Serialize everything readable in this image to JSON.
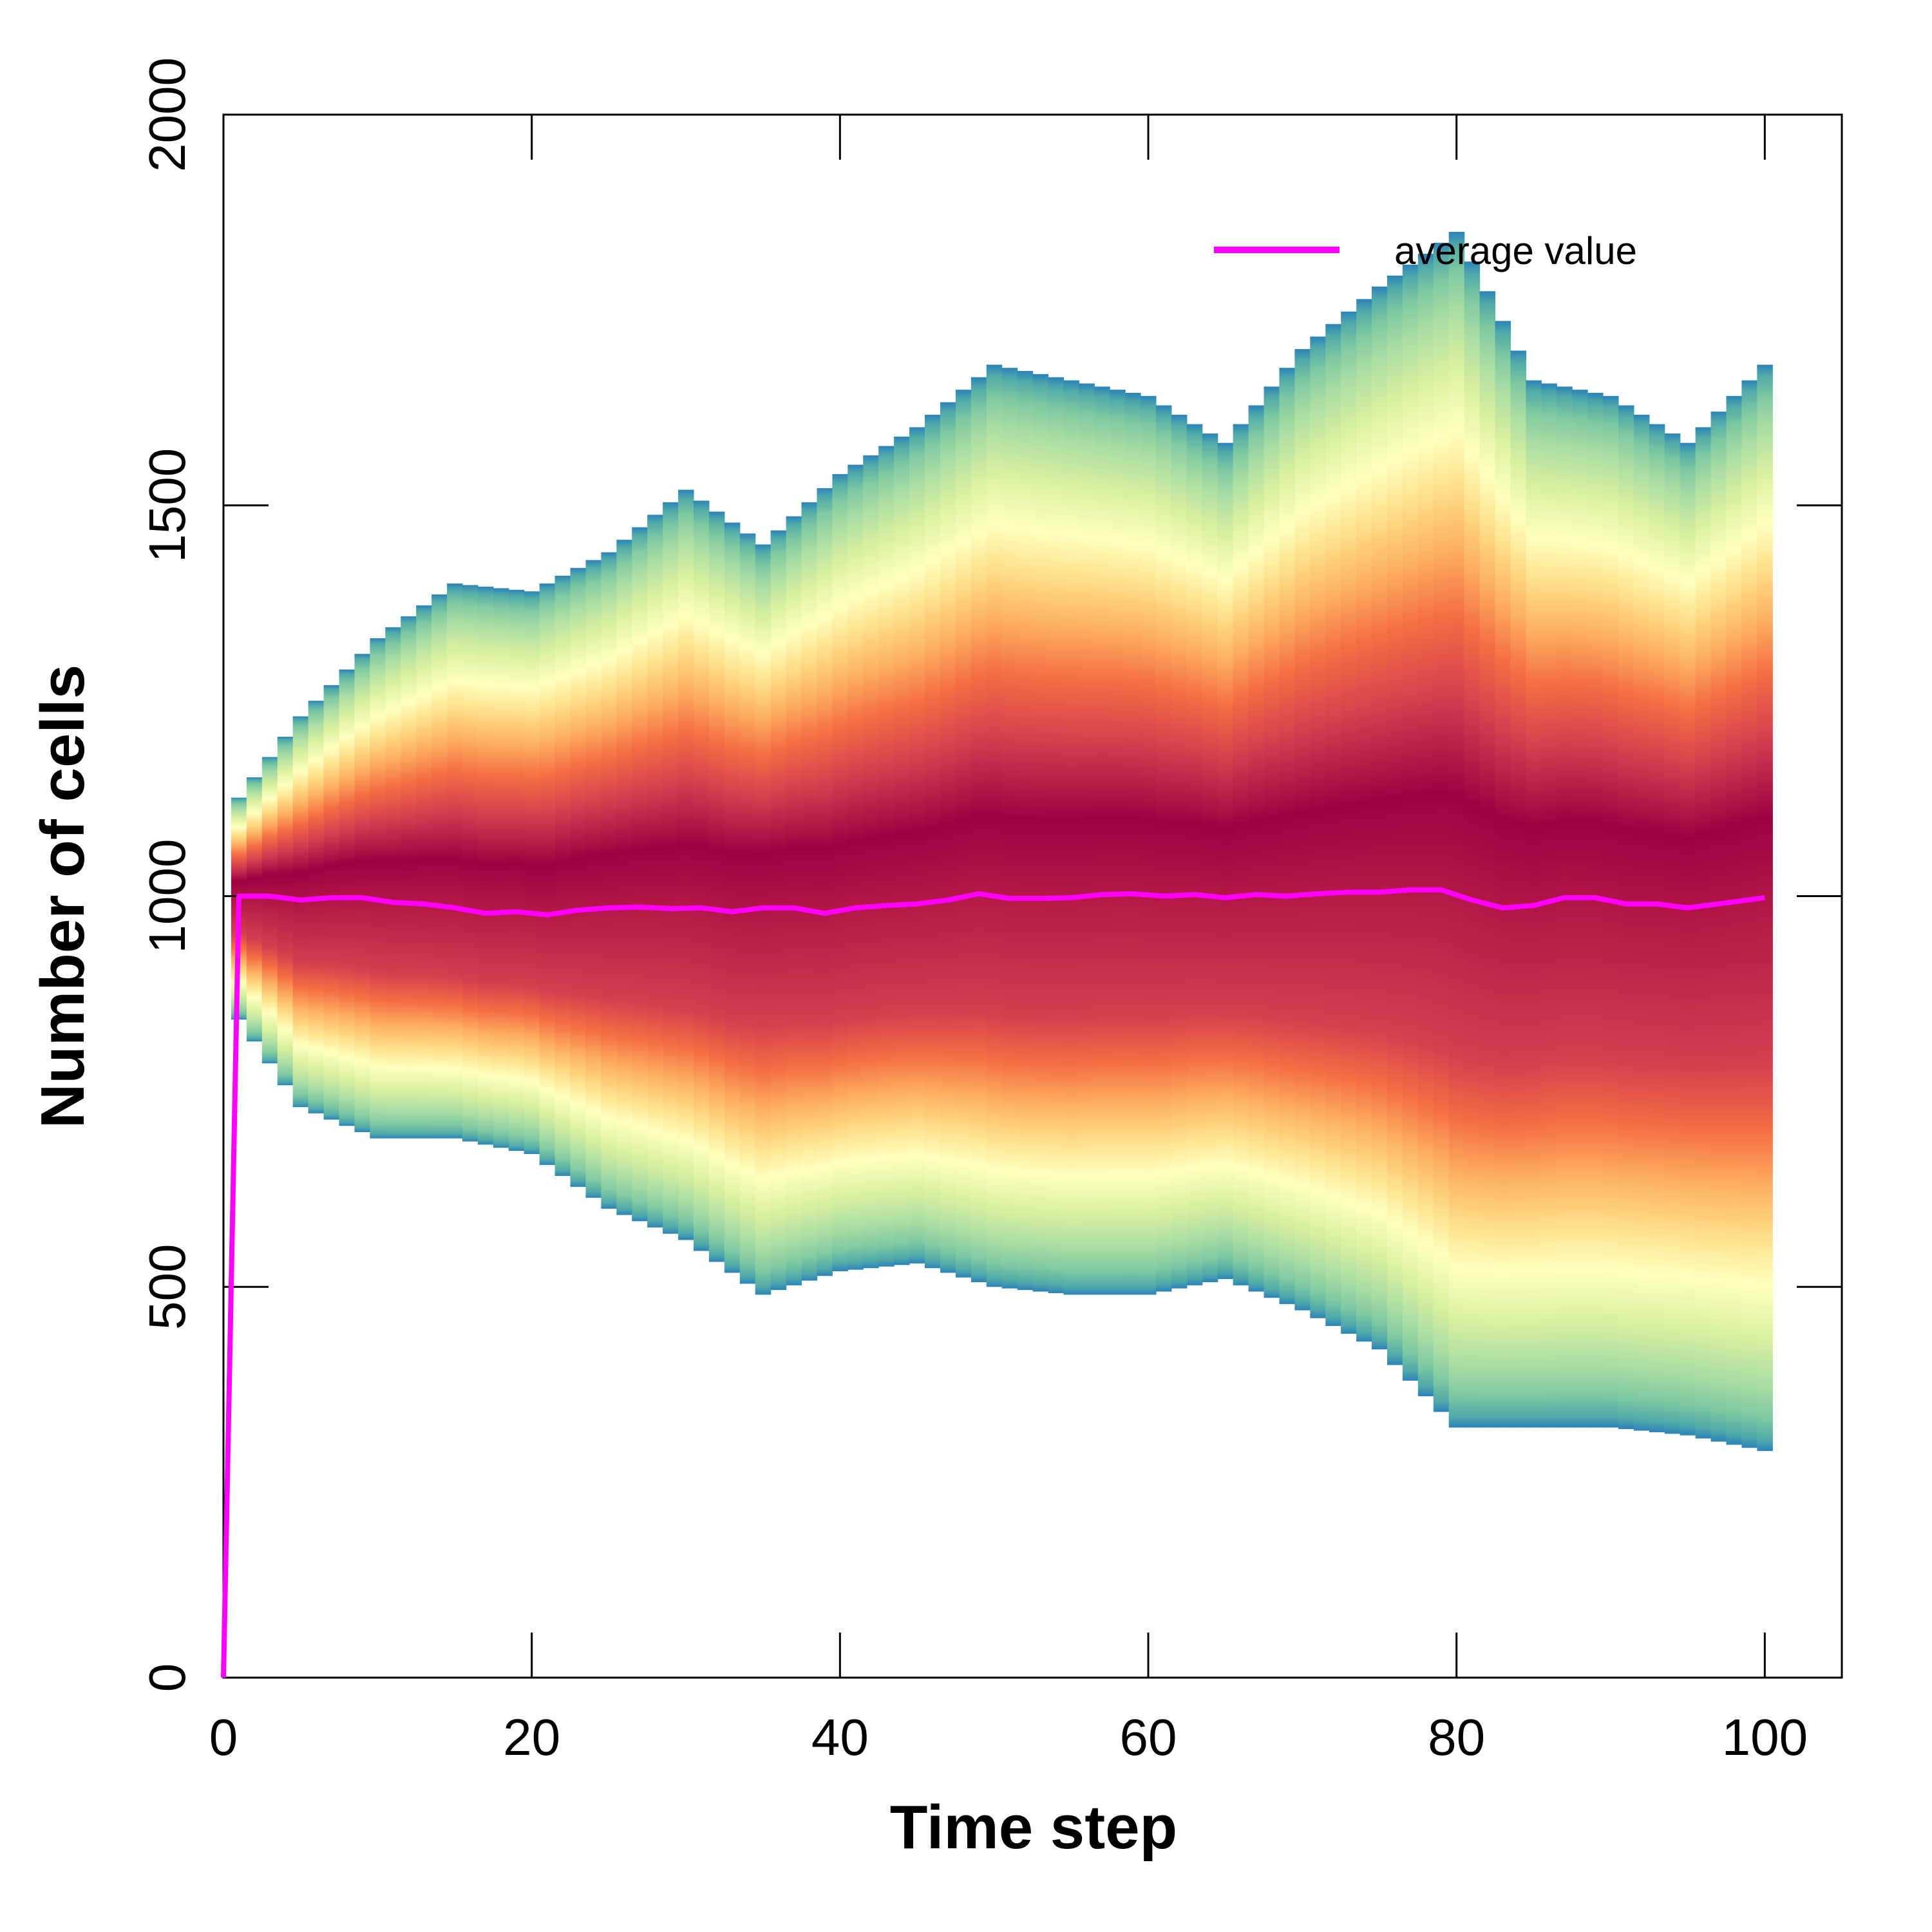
{
  "chart_data": {
    "type": "heatmap",
    "title": "",
    "xlabel": "Time step",
    "ylabel": "Number of cells",
    "xlim": [
      0,
      105
    ],
    "ylim": [
      0,
      2000
    ],
    "x_ticks": [
      0,
      20,
      40,
      60,
      80,
      100
    ],
    "y_ticks": [
      0,
      500,
      1000,
      1500,
      2000
    ],
    "grid": false,
    "legend_position": "top-right",
    "heatmap_palette": [
      "#2b83ba",
      "#4fa9a8",
      "#7fc9a2",
      "#abdda4",
      "#d8ef9f",
      "#ffffbf",
      "#fee08b",
      "#fdae61",
      "#f46d43",
      "#d53e4f",
      "#9e0142"
    ],
    "density_envelope": {
      "x": [
        0,
        5,
        10,
        15,
        20,
        25,
        30,
        35,
        40,
        45,
        50,
        55,
        60,
        65,
        70,
        75,
        80,
        85,
        90,
        95,
        100
      ],
      "upper": [
        1100,
        1230,
        1330,
        1400,
        1390,
        1440,
        1520,
        1450,
        1540,
        1600,
        1680,
        1660,
        1640,
        1580,
        1700,
        1780,
        1850,
        1660,
        1640,
        1580,
        1680
      ],
      "lower": [
        870,
        730,
        690,
        690,
        670,
        600,
        560,
        490,
        520,
        530,
        500,
        490,
        490,
        510,
        470,
        420,
        320,
        320,
        320,
        310,
        290
      ]
    },
    "series": [
      {
        "name": "average value",
        "color": "#ff00ff",
        "x": [
          0,
          1,
          3,
          5,
          7,
          9,
          11,
          13,
          15,
          17,
          19,
          21,
          23,
          25,
          27,
          29,
          31,
          33,
          35,
          37,
          39,
          41,
          43,
          45,
          47,
          49,
          51,
          53,
          55,
          57,
          59,
          61,
          63,
          65,
          67,
          69,
          71,
          73,
          75,
          77,
          79,
          81,
          83,
          85,
          87,
          89,
          91,
          93,
          95,
          97,
          100
        ],
        "y": [
          0,
          1000,
          1000,
          995,
          998,
          998,
          992,
          990,
          985,
          978,
          980,
          976,
          982,
          985,
          986,
          984,
          985,
          980,
          985,
          985,
          978,
          985,
          988,
          990,
          995,
          1003,
          997,
          997,
          998,
          1002,
          1003,
          1000,
          1002,
          998,
          1002,
          1000,
          1003,
          1005,
          1005,
          1008,
          1008,
          995,
          985,
          988,
          998,
          998,
          990,
          990,
          985,
          990,
          998
        ]
      }
    ]
  }
}
